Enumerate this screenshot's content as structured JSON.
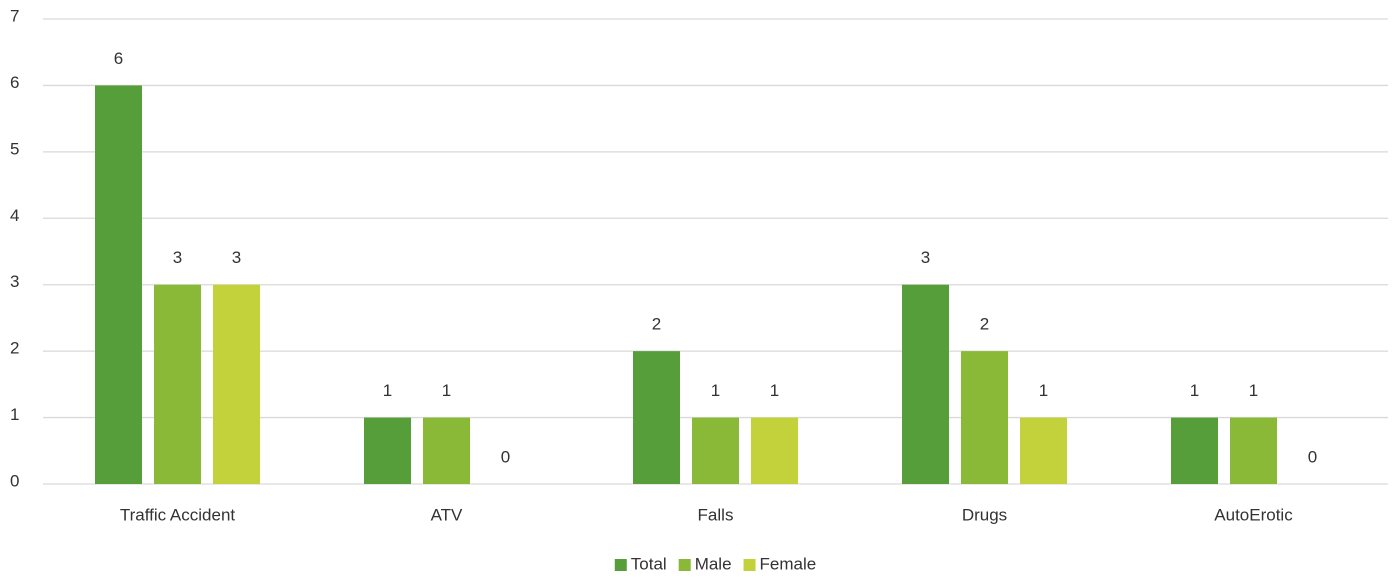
{
  "chart_data": {
    "type": "bar",
    "categories": [
      "Traffic Accident",
      "ATV",
      "Falls",
      "Drugs",
      "AutoErotic"
    ],
    "series": [
      {
        "name": "Total",
        "color": "#559e3a",
        "values": [
          6,
          1,
          2,
          3,
          1
        ]
      },
      {
        "name": "Male",
        "color": "#8ab837",
        "values": [
          3,
          1,
          1,
          2,
          1
        ]
      },
      {
        "name": "Female",
        "color": "#c3d13b",
        "values": [
          3,
          0,
          1,
          1,
          0
        ]
      }
    ],
    "ylim": [
      0,
      7
    ],
    "yticks": [
      0,
      1,
      2,
      3,
      4,
      5,
      6,
      7
    ],
    "grid": true,
    "legend": "bottom"
  }
}
